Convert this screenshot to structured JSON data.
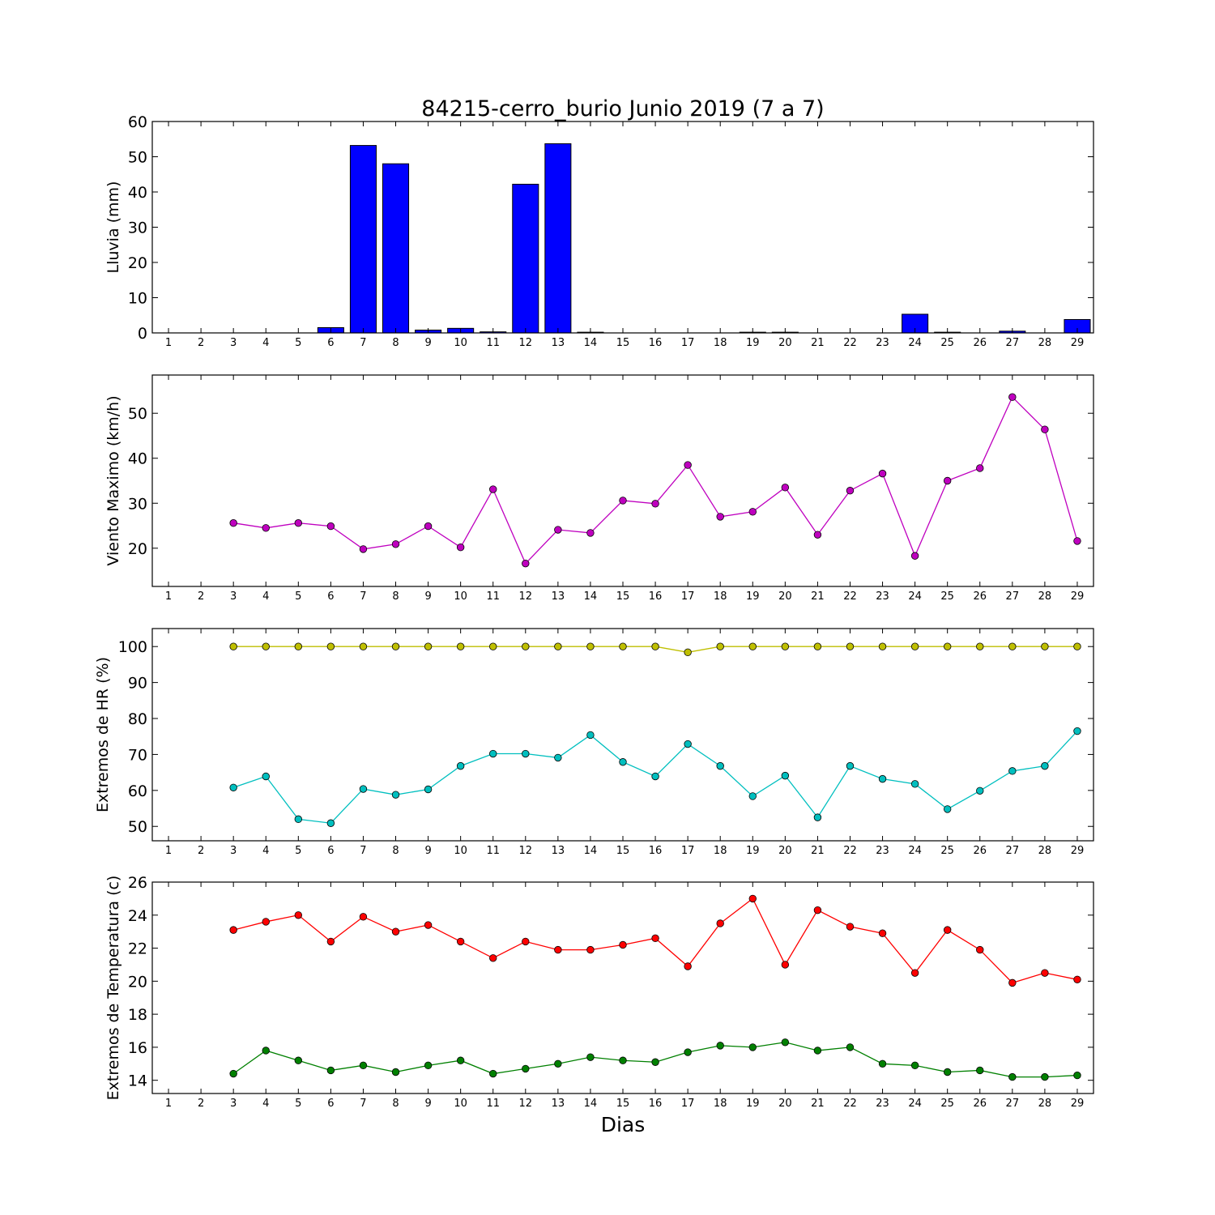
{
  "figure": {
    "title": "84215-cerro_burio Junio 2019  (7 a 7)",
    "xlabel": "Dias"
  },
  "chart_data": [
    {
      "type": "bar",
      "ylabel": "Lluvia (mm)",
      "color": "#0000ff",
      "ylim": [
        0,
        60
      ],
      "yticks": [
        0,
        10,
        20,
        30,
        40,
        50,
        60
      ],
      "xlim": [
        0.5,
        29.5
      ],
      "categories": [
        1,
        2,
        3,
        4,
        5,
        6,
        7,
        8,
        9,
        10,
        11,
        12,
        13,
        14,
        15,
        16,
        17,
        18,
        19,
        20,
        21,
        22,
        23,
        24,
        25,
        26,
        27,
        28,
        29
      ],
      "values": [
        0,
        0,
        0,
        0,
        0,
        1.5,
        53.2,
        48.0,
        0.8,
        1.3,
        0.3,
        42.2,
        53.7,
        0.2,
        0,
        0,
        0,
        0,
        0.2,
        0.2,
        0,
        0,
        0,
        5.3,
        0.2,
        0,
        0.5,
        0,
        3.8
      ]
    },
    {
      "type": "line",
      "ylabel": "Viento Maximo (km/h)",
      "ylim": [
        11.5,
        58.5
      ],
      "yticks": [
        20,
        30,
        40,
        50
      ],
      "xlim": [
        0.5,
        29.5
      ],
      "xticks": [
        1,
        2,
        3,
        4,
        5,
        6,
        7,
        8,
        9,
        10,
        11,
        12,
        13,
        14,
        15,
        16,
        17,
        18,
        19,
        20,
        21,
        22,
        23,
        24,
        25,
        26,
        27,
        28,
        29
      ],
      "series": [
        {
          "color": "#bf00bf",
          "x": [
            3,
            4,
            5,
            6,
            7,
            8,
            9,
            10,
            11,
            12,
            13,
            14,
            15,
            16,
            17,
            18,
            19,
            20,
            21,
            22,
            23,
            24,
            25,
            26,
            27,
            28,
            29
          ],
          "y": [
            25.6,
            24.5,
            25.6,
            24.9,
            19.8,
            20.9,
            24.9,
            20.2,
            33.1,
            16.6,
            24.1,
            23.4,
            30.6,
            29.9,
            38.5,
            27.0,
            28.1,
            33.5,
            23.0,
            32.8,
            36.6,
            18.3,
            35.0,
            37.8,
            53.6,
            46.4,
            21.6
          ]
        }
      ]
    },
    {
      "type": "line",
      "ylabel": "Extremos de HR (%)",
      "ylim": [
        46,
        105
      ],
      "yticks": [
        50,
        60,
        70,
        80,
        90,
        100
      ],
      "xlim": [
        0.5,
        29.5
      ],
      "xticks": [
        1,
        2,
        3,
        4,
        5,
        6,
        7,
        8,
        9,
        10,
        11,
        12,
        13,
        14,
        15,
        16,
        17,
        18,
        19,
        20,
        21,
        22,
        23,
        24,
        25,
        26,
        27,
        28,
        29
      ],
      "series": [
        {
          "color": "#bfbf00",
          "x": [
            3,
            4,
            5,
            6,
            7,
            8,
            9,
            10,
            11,
            12,
            13,
            14,
            15,
            16,
            17,
            18,
            19,
            20,
            21,
            22,
            23,
            24,
            25,
            26,
            27,
            28,
            29
          ],
          "y": [
            100,
            100,
            100,
            100,
            100,
            100,
            100,
            100,
            100,
            100,
            100,
            100,
            100,
            100,
            98.4,
            100,
            100,
            100,
            100,
            100,
            100,
            100,
            100,
            100,
            100,
            100,
            100
          ]
        },
        {
          "color": "#00bfbf",
          "x": [
            3,
            4,
            5,
            6,
            7,
            8,
            9,
            10,
            11,
            12,
            13,
            14,
            15,
            16,
            17,
            18,
            19,
            20,
            21,
            22,
            23,
            24,
            25,
            26,
            27,
            28,
            29
          ],
          "y": [
            60.8,
            63.9,
            52.0,
            50.9,
            60.4,
            58.8,
            60.3,
            66.8,
            70.2,
            70.2,
            69.1,
            75.4,
            67.9,
            63.9,
            72.9,
            66.8,
            58.4,
            64.1,
            52.5,
            66.8,
            63.2,
            61.8,
            54.8,
            59.9,
            65.4,
            66.8,
            76.5
          ]
        }
      ]
    },
    {
      "type": "line",
      "ylabel": "Extremos de Temperatura (c)",
      "ylim": [
        13.2,
        26
      ],
      "yticks": [
        14,
        16,
        18,
        20,
        22,
        24,
        26
      ],
      "xlim": [
        0.5,
        29.5
      ],
      "xticks": [
        1,
        2,
        3,
        4,
        5,
        6,
        7,
        8,
        9,
        10,
        11,
        12,
        13,
        14,
        15,
        16,
        17,
        18,
        19,
        20,
        21,
        22,
        23,
        24,
        25,
        26,
        27,
        28,
        29
      ],
      "series": [
        {
          "color": "#ff0000",
          "x": [
            3,
            4,
            5,
            6,
            7,
            8,
            9,
            10,
            11,
            12,
            13,
            14,
            15,
            16,
            17,
            18,
            19,
            20,
            21,
            22,
            23,
            24,
            25,
            26,
            27,
            28,
            29
          ],
          "y": [
            23.1,
            23.6,
            24.0,
            22.4,
            23.9,
            23.0,
            23.4,
            22.4,
            21.4,
            22.4,
            21.9,
            21.9,
            22.2,
            22.6,
            20.9,
            23.5,
            25.0,
            21.0,
            24.3,
            23.3,
            22.9,
            20.5,
            23.1,
            21.9,
            19.9,
            20.5,
            20.1
          ]
        },
        {
          "color": "#008000",
          "x": [
            3,
            4,
            5,
            6,
            7,
            8,
            9,
            10,
            11,
            12,
            13,
            14,
            15,
            16,
            17,
            18,
            19,
            20,
            21,
            22,
            23,
            24,
            25,
            26,
            27,
            28,
            29
          ],
          "y": [
            14.4,
            15.8,
            15.2,
            14.6,
            14.9,
            14.5,
            14.9,
            15.2,
            14.4,
            14.7,
            15.0,
            15.4,
            15.2,
            15.1,
            15.7,
            16.1,
            16.0,
            16.3,
            15.8,
            16.0,
            15.0,
            14.9,
            14.5,
            14.6,
            14.2,
            14.2,
            14.3
          ]
        }
      ]
    }
  ]
}
